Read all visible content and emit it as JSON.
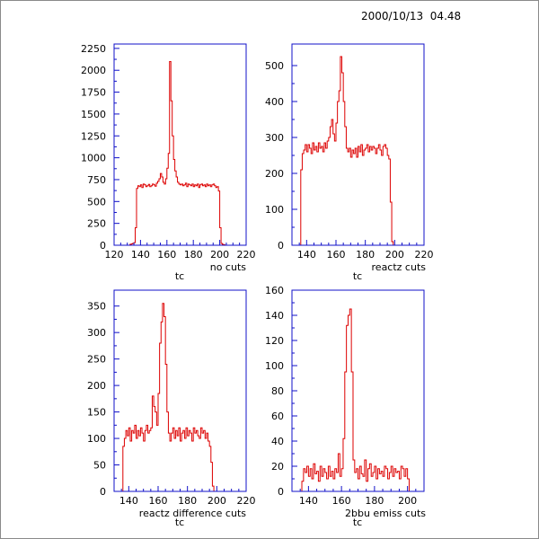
{
  "timestamp": "2000/10/13  04.48",
  "colors": {
    "axes_frame": "#1010c8",
    "histogram": "#dd0000",
    "text": "#000000"
  },
  "chart_data": [
    {
      "type": "histogram",
      "xlabel": "tc",
      "label": "no cuts",
      "xlim": [
        120,
        220
      ],
      "ylim": [
        0,
        2300
      ],
      "xticks": [
        120,
        140,
        160,
        180,
        200,
        220
      ],
      "xtick_labels": [
        "120",
        "140",
        "160",
        "180",
        "200",
        "220"
      ],
      "yticks": [
        0,
        250,
        500,
        750,
        1000,
        1250,
        1500,
        1750,
        2000,
        2250
      ],
      "ytick_labels": [
        "0",
        "250",
        "500",
        "750",
        "1000",
        "1250",
        "1500",
        "1750",
        "2000",
        "2250"
      ],
      "bin_start": 132,
      "bin_width": 1,
      "values": [
        10,
        15,
        20,
        30,
        200,
        650,
        680,
        670,
        690,
        660,
        700,
        690,
        670,
        680,
        695,
        670,
        680,
        700,
        690,
        675,
        710,
        730,
        760,
        820,
        780,
        720,
        700,
        760,
        880,
        1050,
        2100,
        1650,
        1250,
        980,
        850,
        780,
        720,
        700,
        690,
        700,
        680,
        690,
        710,
        670,
        700,
        690,
        680,
        700,
        670,
        690,
        680,
        700,
        660,
        690,
        700,
        680,
        690,
        670,
        700,
        680,
        690,
        670,
        690,
        700,
        680,
        660,
        670,
        620,
        200,
        20,
        10,
        5
      ]
    },
    {
      "type": "histogram",
      "xlabel": "tc",
      "label": "reactz cuts",
      "xlim": [
        130,
        220
      ],
      "ylim": [
        0,
        560
      ],
      "xticks": [
        140,
        160,
        180,
        200,
        220
      ],
      "xtick_labels": [
        "140",
        "160",
        "180",
        "200",
        "220"
      ],
      "yticks": [
        0,
        100,
        200,
        300,
        400,
        500
      ],
      "ytick_labels": [
        "0",
        "100",
        "200",
        "300",
        "400",
        "500"
      ],
      "bin_start": 133,
      "bin_width": 1,
      "values": [
        0,
        0,
        0,
        210,
        255,
        265,
        280,
        260,
        280,
        270,
        255,
        285,
        265,
        275,
        260,
        285,
        270,
        275,
        260,
        285,
        270,
        290,
        300,
        330,
        350,
        310,
        290,
        340,
        400,
        430,
        525,
        480,
        400,
        330,
        270,
        260,
        270,
        245,
        265,
        255,
        270,
        245,
        275,
        260,
        280,
        250,
        265,
        270,
        280,
        260,
        275,
        265,
        275,
        270,
        255,
        270,
        280,
        265,
        250,
        275,
        280,
        270,
        250,
        240,
        120,
        10,
        0,
        0
      ]
    },
    {
      "type": "histogram",
      "xlabel": "tc",
      "label": "reactz difference cuts",
      "xlim": [
        130,
        220
      ],
      "ylim": [
        0,
        380
      ],
      "xticks": [
        140,
        160,
        180,
        200,
        220
      ],
      "xtick_labels": [
        "140",
        "160",
        "180",
        "200",
        "220"
      ],
      "yticks": [
        0,
        50,
        100,
        150,
        200,
        250,
        300,
        350
      ],
      "ytick_labels": [
        "0",
        "50",
        "100",
        "150",
        "200",
        "250",
        "300",
        "350"
      ],
      "bin_start": 133,
      "bin_width": 1,
      "values": [
        0,
        0,
        0,
        85,
        100,
        115,
        105,
        120,
        95,
        115,
        110,
        125,
        100,
        115,
        105,
        120,
        110,
        95,
        115,
        125,
        110,
        115,
        120,
        180,
        160,
        150,
        125,
        185,
        280,
        320,
        355,
        330,
        240,
        150,
        110,
        95,
        110,
        120,
        100,
        115,
        105,
        120,
        95,
        110,
        115,
        100,
        120,
        105,
        115,
        110,
        95,
        120,
        110,
        115,
        105,
        100,
        120,
        110,
        115,
        100,
        110,
        95,
        85,
        55,
        10,
        0,
        0,
        0
      ]
    },
    {
      "type": "histogram",
      "xlabel": "tc",
      "label": "2bbu emiss cuts",
      "xlim": [
        130,
        210
      ],
      "ylim": [
        0,
        160
      ],
      "xticks": [
        140,
        160,
        180,
        200
      ],
      "xtick_labels": [
        "140",
        "160",
        "180",
        "200"
      ],
      "yticks": [
        0,
        20,
        40,
        60,
        80,
        100,
        120,
        140,
        160
      ],
      "ytick_labels": [
        "0",
        "20",
        "40",
        "60",
        "80",
        "100",
        "120",
        "140",
        "160"
      ],
      "bin_start": 133,
      "bin_width": 1,
      "values": [
        0,
        0,
        0,
        8,
        18,
        15,
        20,
        12,
        18,
        10,
        22,
        14,
        16,
        8,
        20,
        12,
        18,
        15,
        10,
        20,
        12,
        16,
        10,
        18,
        15,
        30,
        12,
        18,
        42,
        95,
        132,
        140,
        145,
        95,
        25,
        15,
        18,
        10,
        20,
        14,
        12,
        25,
        8,
        18,
        22,
        12,
        15,
        20,
        10,
        18,
        14,
        16,
        12,
        20,
        18,
        10,
        15,
        20,
        12,
        18,
        15,
        16,
        10,
        20,
        18,
        12,
        18,
        10,
        0,
        0,
        0,
        0,
        0,
        0,
        0
      ]
    }
  ]
}
